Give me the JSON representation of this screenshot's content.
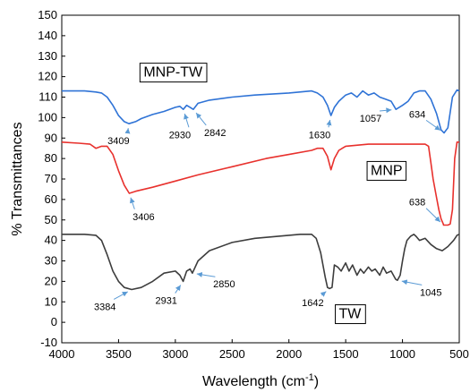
{
  "chart_data": {
    "type": "line",
    "title": "",
    "xlabel": "Wavelength (cm",
    "xlabel_sup": "-1",
    "xlabel_close": ")",
    "ylabel": "% Transmittances",
    "xlim": [
      4000,
      500
    ],
    "ylim": [
      -10,
      150
    ],
    "x_ticks": [
      4000,
      3500,
      3000,
      2500,
      2000,
      1500,
      1000,
      500
    ],
    "y_ticks": [
      -10,
      0,
      10,
      20,
      30,
      40,
      50,
      60,
      70,
      80,
      90,
      100,
      110,
      120,
      130,
      140,
      150
    ],
    "grid": false,
    "series": [
      {
        "name": "MNP-TW",
        "color": "#2f73d6",
        "x": [
          4000,
          3800,
          3700,
          3650,
          3600,
          3550,
          3500,
          3450,
          3409,
          3350,
          3300,
          3200,
          3100,
          3000,
          2960,
          2930,
          2900,
          2870,
          2842,
          2800,
          2700,
          2500,
          2300,
          2000,
          1800,
          1750,
          1700,
          1660,
          1630,
          1600,
          1560,
          1500,
          1450,
          1400,
          1350,
          1300,
          1250,
          1200,
          1150,
          1100,
          1057,
          1000,
          950,
          900,
          850,
          800,
          750,
          700,
          660,
          634,
          600,
          560,
          520,
          500
        ],
        "y": [
          113,
          113,
          112.5,
          112,
          110,
          106,
          101,
          98,
          97,
          98,
          99.5,
          101.5,
          103,
          105,
          105.5,
          104,
          106,
          105,
          104,
          107,
          108.5,
          110,
          111,
          112,
          113,
          112,
          110,
          106,
          101,
          105,
          108,
          111,
          112,
          110,
          113,
          111,
          112,
          110,
          109,
          108,
          104,
          106,
          108,
          112,
          113,
          113,
          109,
          102,
          94,
          92.5,
          95,
          110,
          113.5,
          113
        ]
      },
      {
        "name": "MNP",
        "color": "#e8312d",
        "x": [
          4000,
          3850,
          3750,
          3700,
          3650,
          3600,
          3550,
          3500,
          3450,
          3406,
          3350,
          3200,
          3000,
          2800,
          2500,
          2200,
          2000,
          1800,
          1750,
          1700,
          1660,
          1630,
          1600,
          1560,
          1500,
          1300,
          1100,
          1000,
          900,
          800,
          770,
          750,
          730,
          700,
          680,
          660,
          640,
          638,
          620,
          600,
          580,
          560,
          540,
          520,
          500
        ],
        "y": [
          88,
          87.5,
          87,
          85,
          86,
          86,
          82,
          74,
          67,
          63,
          64,
          66,
          69,
          72,
          76,
          80,
          82,
          84,
          85,
          85,
          81,
          74.5,
          80,
          84,
          86,
          87,
          87,
          87,
          87,
          87,
          86,
          78,
          70,
          61,
          55,
          50.5,
          48,
          47.5,
          47.5,
          47.5,
          48,
          55,
          80,
          88,
          88
        ]
      },
      {
        "name": "TW",
        "color": "#3d3d3d",
        "x": [
          4000,
          3800,
          3700,
          3650,
          3600,
          3550,
          3500,
          3450,
          3384,
          3300,
          3200,
          3100,
          3000,
          2960,
          2931,
          2900,
          2870,
          2850,
          2800,
          2700,
          2500,
          2300,
          2100,
          1900,
          1800,
          1760,
          1720,
          1680,
          1660,
          1642,
          1620,
          1600,
          1570,
          1540,
          1500,
          1470,
          1440,
          1400,
          1370,
          1340,
          1300,
          1270,
          1240,
          1200,
          1170,
          1140,
          1100,
          1060,
          1045,
          1020,
          1000,
          980,
          960,
          930,
          900,
          880,
          850,
          800,
          750,
          700,
          650,
          600,
          550,
          520,
          500
        ],
        "y": [
          43,
          43,
          42.5,
          40,
          33,
          25,
          20,
          17,
          16,
          17,
          20,
          24,
          25,
          23,
          20,
          25,
          26,
          24,
          30,
          35,
          39,
          41,
          42,
          43,
          43,
          41,
          34,
          22,
          17,
          16.5,
          17,
          28,
          27,
          25,
          29,
          25,
          28,
          23,
          26,
          24,
          27,
          25,
          26,
          23,
          27,
          24,
          25,
          21,
          20.5,
          23,
          30,
          36,
          40,
          42,
          43,
          42,
          40,
          41,
          38,
          36,
          35,
          37,
          40,
          42.5,
          43
        ]
      }
    ],
    "legend_boxes": [
      {
        "text": "MNP-TW",
        "x": 3280,
        "y": 120
      },
      {
        "text": "MNP",
        "x": 1280,
        "y": 72
      },
      {
        "text": "TW",
        "x": 1560,
        "y": 2
      }
    ],
    "annotations": [
      {
        "text": "3409",
        "x": 3409,
        "y": 97,
        "tx": 3500,
        "ty": 87
      },
      {
        "text": "2930",
        "x": 2930,
        "y": 104,
        "tx": 2960,
        "ty": 90
      },
      {
        "text": "2842",
        "x": 2842,
        "y": 104,
        "tx": 2650,
        "ty": 91
      },
      {
        "text": "1630",
        "x": 1630,
        "y": 101,
        "tx": 1730,
        "ty": 90
      },
      {
        "text": "1057",
        "x": 1057,
        "y": 104,
        "tx": 1280,
        "ty": 98
      },
      {
        "text": "634",
        "x": 634,
        "y": 92.5,
        "tx": 870,
        "ty": 100
      },
      {
        "text": "3406",
        "x": 3406,
        "y": 63,
        "tx": 3280,
        "ty": 50
      },
      {
        "text": "638",
        "x": 638,
        "y": 47.5,
        "tx": 870,
        "ty": 57
      },
      {
        "text": "3384",
        "x": 3384,
        "y": 16,
        "tx": 3620,
        "ty": 6
      },
      {
        "text": "2931",
        "x": 2931,
        "y": 20,
        "tx": 3080,
        "ty": 9
      },
      {
        "text": "2850",
        "x": 2850,
        "y": 24,
        "tx": 2570,
        "ty": 17
      },
      {
        "text": "1642",
        "x": 1642,
        "y": 16.5,
        "tx": 1790,
        "ty": 8
      },
      {
        "text": "1045",
        "x": 1045,
        "y": 20.5,
        "tx": 750,
        "ty": 13
      }
    ],
    "annotation_arrow_color": "#5b9bd5"
  }
}
